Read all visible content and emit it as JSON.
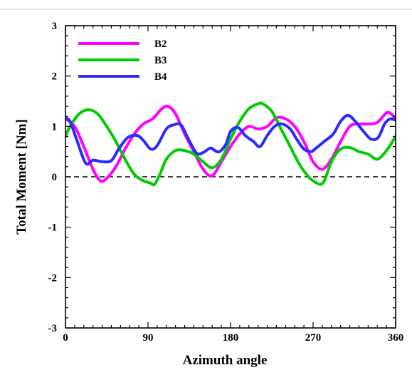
{
  "chart_data": {
    "type": "line",
    "title": "",
    "xlabel": "Azimuth angle",
    "ylabel": "Total Moment [Nm]",
    "xlim": [
      0,
      360
    ],
    "ylim": [
      -3,
      3
    ],
    "xticks": [
      0,
      90,
      180,
      270,
      360
    ],
    "yticks": [
      -3,
      -2,
      -1,
      0,
      1,
      2,
      3
    ],
    "reference_line": {
      "y": 0,
      "style": "dashed"
    },
    "grid": false,
    "legend": "top-left",
    "series": [
      {
        "name": "B2",
        "color": "#ff00ff",
        "x": [
          0,
          10,
          20,
          30,
          38,
          45,
          55,
          65,
          75,
          85,
          95,
          105,
          112,
          120,
          130,
          140,
          150,
          160,
          170,
          180,
          190,
          200,
          210,
          220,
          230,
          240,
          250,
          260,
          270,
          280,
          290,
          300,
          310,
          320,
          330,
          340,
          350,
          355,
          360
        ],
        "y": [
          1.15,
          1.0,
          0.6,
          0.15,
          -0.08,
          -0.03,
          0.2,
          0.55,
          0.85,
          1.05,
          1.15,
          1.35,
          1.4,
          1.25,
          0.85,
          0.5,
          0.15,
          0.02,
          0.3,
          0.6,
          0.85,
          1.0,
          0.95,
          1.0,
          1.17,
          1.15,
          1.0,
          0.7,
          0.3,
          0.15,
          0.35,
          0.7,
          1.0,
          1.05,
          1.05,
          1.08,
          1.27,
          1.25,
          1.15
        ]
      },
      {
        "name": "B3",
        "color": "#00cc00",
        "x": [
          0,
          5,
          15,
          25,
          35,
          45,
          55,
          65,
          75,
          85,
          92,
          97,
          103,
          110,
          120,
          130,
          140,
          150,
          160,
          170,
          180,
          190,
          200,
          210,
          215,
          225,
          235,
          245,
          255,
          265,
          270,
          278,
          283,
          290,
          300,
          310,
          320,
          330,
          340,
          350,
          360
        ],
        "y": [
          0.8,
          1.0,
          1.25,
          1.33,
          1.25,
          1.0,
          0.7,
          0.35,
          0.05,
          -0.08,
          -0.12,
          -0.15,
          0.05,
          0.35,
          0.52,
          0.52,
          0.45,
          0.3,
          0.18,
          0.35,
          0.75,
          1.1,
          1.35,
          1.45,
          1.45,
          1.3,
          0.95,
          0.6,
          0.25,
          0.0,
          -0.08,
          -0.15,
          -0.05,
          0.3,
          0.55,
          0.58,
          0.5,
          0.45,
          0.35,
          0.52,
          0.8
        ]
      },
      {
        "name": "B4",
        "color": "#2b2bff",
        "x": [
          0,
          5,
          12,
          22,
          30,
          40,
          50,
          58,
          68,
          78,
          85,
          93,
          100,
          110,
          118,
          126,
          134,
          143,
          150,
          158,
          163,
          168,
          175,
          180,
          188,
          196,
          205,
          212,
          220,
          228,
          236,
          245,
          252,
          260,
          268,
          272,
          282,
          292,
          300,
          308,
          316,
          325,
          333,
          341,
          348,
          354,
          360
        ],
        "y": [
          1.17,
          1.1,
          0.75,
          0.27,
          0.33,
          0.3,
          0.32,
          0.55,
          0.78,
          0.82,
          0.72,
          0.55,
          0.62,
          0.95,
          1.03,
          1.03,
          0.75,
          0.47,
          0.48,
          0.57,
          0.52,
          0.5,
          0.65,
          0.9,
          0.98,
          0.82,
          0.7,
          0.6,
          0.82,
          1.0,
          1.05,
          0.95,
          0.75,
          0.55,
          0.5,
          0.55,
          0.7,
          0.85,
          1.1,
          1.22,
          1.1,
          0.9,
          0.75,
          0.78,
          1.05,
          1.15,
          1.12
        ]
      }
    ]
  }
}
